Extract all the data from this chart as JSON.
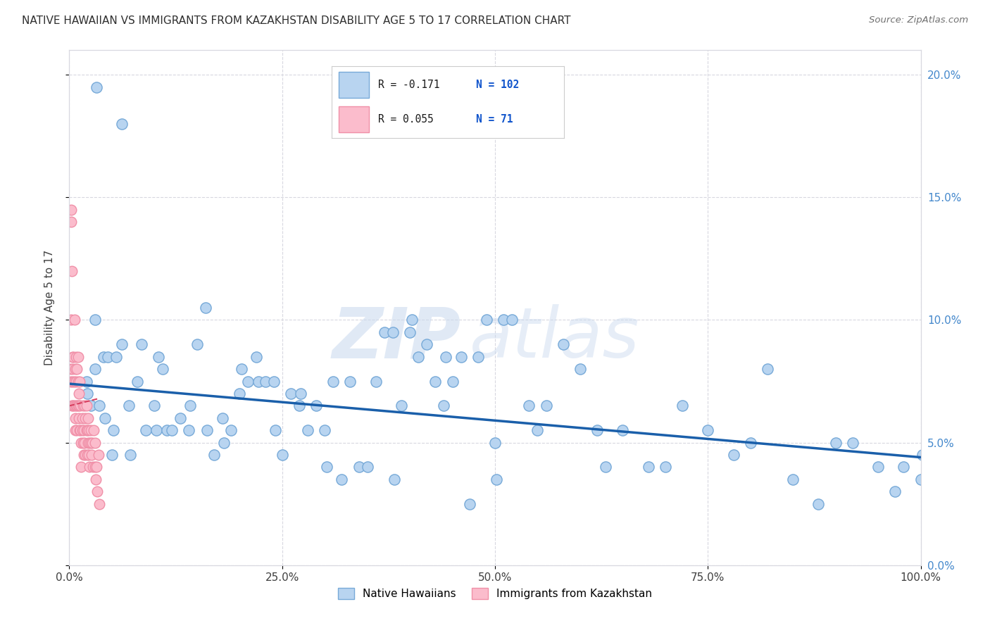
{
  "title": "NATIVE HAWAIIAN VS IMMIGRANTS FROM KAZAKHSTAN DISABILITY AGE 5 TO 17 CORRELATION CHART",
  "source": "Source: ZipAtlas.com",
  "ylabel": "Disability Age 5 to 17",
  "xlim": [
    0,
    1.0
  ],
  "ylim": [
    0,
    0.21
  ],
  "blue_label": "Native Hawaiians",
  "pink_label": "Immigrants from Kazakhstan",
  "blue_R": "-0.171",
  "blue_N": "102",
  "pink_R": "0.055",
  "pink_N": "71",
  "blue_color": "#b8d4f0",
  "blue_edge": "#78aad8",
  "pink_color": "#fbbccc",
  "pink_edge": "#f090a8",
  "trend_blue": "#1a5faa",
  "trend_pink": "#d84060",
  "background": "#ffffff",
  "grid_color": "#d8d8e0",
  "title_color": "#303030",
  "right_axis_color": "#4488cc",
  "legend_R_color": "#1a1a1a",
  "legend_N_color": "#1155cc",
  "blue_x": [
    0.02,
    0.021,
    0.025,
    0.03,
    0.03,
    0.035,
    0.04,
    0.042,
    0.045,
    0.05,
    0.052,
    0.055,
    0.062,
    0.07,
    0.072,
    0.08,
    0.085,
    0.09,
    0.1,
    0.102,
    0.105,
    0.11,
    0.115,
    0.12,
    0.13,
    0.14,
    0.142,
    0.15,
    0.16,
    0.162,
    0.17,
    0.18,
    0.182,
    0.19,
    0.2,
    0.202,
    0.21,
    0.22,
    0.222,
    0.23,
    0.24,
    0.242,
    0.25,
    0.26,
    0.27,
    0.272,
    0.28,
    0.29,
    0.3,
    0.302,
    0.31,
    0.32,
    0.33,
    0.34,
    0.35,
    0.36,
    0.37,
    0.38,
    0.382,
    0.39,
    0.4,
    0.402,
    0.41,
    0.42,
    0.43,
    0.44,
    0.442,
    0.45,
    0.46,
    0.47,
    0.48,
    0.49,
    0.5,
    0.502,
    0.51,
    0.52,
    0.54,
    0.55,
    0.56,
    0.58,
    0.6,
    0.62,
    0.63,
    0.65,
    0.68,
    0.7,
    0.72,
    0.75,
    0.78,
    0.8,
    0.82,
    0.85,
    0.88,
    0.9,
    0.92,
    0.95,
    0.97,
    0.98,
    1.0,
    1.002,
    0.032,
    0.062
  ],
  "blue_y": [
    0.075,
    0.07,
    0.065,
    0.08,
    0.1,
    0.065,
    0.085,
    0.06,
    0.085,
    0.045,
    0.055,
    0.085,
    0.09,
    0.065,
    0.045,
    0.075,
    0.09,
    0.055,
    0.065,
    0.055,
    0.085,
    0.08,
    0.055,
    0.055,
    0.06,
    0.055,
    0.065,
    0.09,
    0.105,
    0.055,
    0.045,
    0.06,
    0.05,
    0.055,
    0.07,
    0.08,
    0.075,
    0.085,
    0.075,
    0.075,
    0.075,
    0.055,
    0.045,
    0.07,
    0.065,
    0.07,
    0.055,
    0.065,
    0.055,
    0.04,
    0.075,
    0.035,
    0.075,
    0.04,
    0.04,
    0.075,
    0.095,
    0.095,
    0.035,
    0.065,
    0.095,
    0.1,
    0.085,
    0.09,
    0.075,
    0.065,
    0.085,
    0.075,
    0.085,
    0.025,
    0.085,
    0.1,
    0.05,
    0.035,
    0.1,
    0.1,
    0.065,
    0.055,
    0.065,
    0.09,
    0.08,
    0.055,
    0.04,
    0.055,
    0.04,
    0.04,
    0.065,
    0.055,
    0.045,
    0.05,
    0.08,
    0.035,
    0.025,
    0.05,
    0.05,
    0.04,
    0.03,
    0.04,
    0.035,
    0.045,
    0.195,
    0.18
  ],
  "pink_x": [
    0.001,
    0.001,
    0.002,
    0.002,
    0.002,
    0.003,
    0.003,
    0.003,
    0.004,
    0.004,
    0.004,
    0.005,
    0.005,
    0.005,
    0.006,
    0.006,
    0.006,
    0.007,
    0.007,
    0.007,
    0.008,
    0.008,
    0.008,
    0.009,
    0.009,
    0.009,
    0.01,
    0.01,
    0.01,
    0.011,
    0.011,
    0.011,
    0.012,
    0.012,
    0.013,
    0.013,
    0.014,
    0.014,
    0.015,
    0.015,
    0.016,
    0.016,
    0.017,
    0.017,
    0.018,
    0.018,
    0.019,
    0.019,
    0.02,
    0.02,
    0.021,
    0.021,
    0.022,
    0.022,
    0.023,
    0.023,
    0.024,
    0.024,
    0.025,
    0.025,
    0.026,
    0.027,
    0.028,
    0.029,
    0.03,
    0.03,
    0.031,
    0.032,
    0.033,
    0.034,
    0.035
  ],
  "pink_y": [
    0.08,
    0.075,
    0.14,
    0.145,
    0.1,
    0.075,
    0.065,
    0.12,
    0.085,
    0.065,
    0.08,
    0.075,
    0.065,
    0.085,
    0.075,
    0.065,
    0.1,
    0.055,
    0.08,
    0.06,
    0.065,
    0.075,
    0.085,
    0.065,
    0.08,
    0.055,
    0.075,
    0.065,
    0.085,
    0.06,
    0.07,
    0.065,
    0.055,
    0.075,
    0.065,
    0.055,
    0.05,
    0.04,
    0.06,
    0.055,
    0.065,
    0.05,
    0.055,
    0.045,
    0.065,
    0.05,
    0.06,
    0.045,
    0.065,
    0.055,
    0.045,
    0.055,
    0.05,
    0.06,
    0.045,
    0.055,
    0.05,
    0.04,
    0.055,
    0.05,
    0.045,
    0.05,
    0.04,
    0.055,
    0.04,
    0.05,
    0.035,
    0.04,
    0.03,
    0.045,
    0.025
  ],
  "blue_trend_x": [
    0,
    1.0
  ],
  "blue_trend_y": [
    0.074,
    0.044
  ],
  "pink_trend_x": [
    0.0,
    0.035
  ],
  "pink_trend_y": [
    0.065,
    0.068
  ],
  "watermark_zip": "ZIP",
  "watermark_atlas": "atlas",
  "yticks": [
    0.0,
    0.05,
    0.1,
    0.15,
    0.2
  ],
  "ytick_labels_right": [
    "0.0%",
    "5.0%",
    "10.0%",
    "15.0%",
    "20.0%"
  ],
  "xticks": [
    0.0,
    0.25,
    0.5,
    0.75,
    1.0
  ],
  "xtick_labels": [
    "0.0%",
    "25.0%",
    "50.0%",
    "75.0%",
    "100.0%"
  ]
}
